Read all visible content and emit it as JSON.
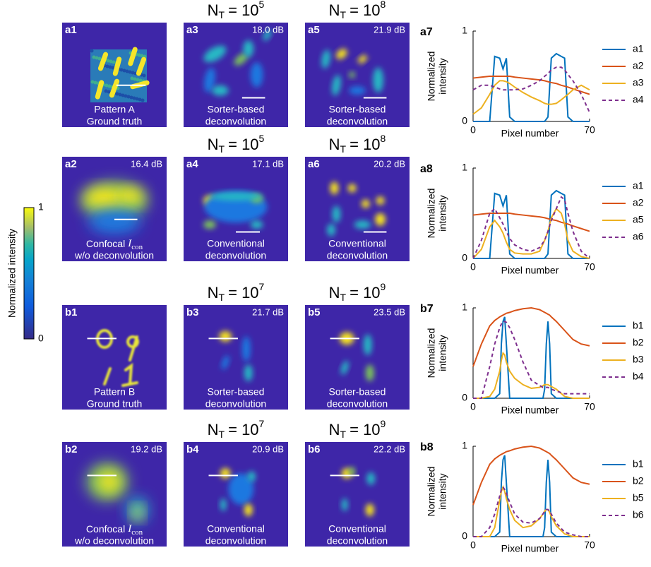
{
  "panels": [
    {
      "label": "a1",
      "caption": [
        "Pattern A",
        "Ground truth"
      ]
    },
    {
      "label": "a3",
      "snr": "18.0 dB",
      "caption": [
        "Sorter-based",
        "deconvolution"
      ]
    },
    {
      "label": "a5",
      "snr": "21.9 dB",
      "caption": [
        "Sorter-based",
        "deconvolution"
      ]
    },
    {
      "label": "a2",
      "snr": "16.4 dB",
      "caption_rich": {
        "text": "Confocal",
        "symbol": "I",
        "subscript": "con"
      },
      "caption": [
        "w/o deconvolution"
      ]
    },
    {
      "label": "a4",
      "snr": "17.1 dB",
      "caption": [
        "Conventional",
        "deconvolution"
      ]
    },
    {
      "label": "a6",
      "snr": "20.2 dB",
      "caption": [
        "Conventional",
        "deconvolution"
      ]
    },
    {
      "label": "b1",
      "caption": [
        "Pattern B",
        "Ground truth"
      ]
    },
    {
      "label": "b3",
      "snr": "21.7 dB",
      "caption": [
        "Sorter-based",
        "deconvolution"
      ]
    },
    {
      "label": "b5",
      "snr": "23.5 dB",
      "caption": [
        "Sorter-based",
        "deconvolution"
      ]
    },
    {
      "label": "b2",
      "snr": "19.2 dB",
      "caption_rich": {
        "text": "Confocal",
        "symbol": "I",
        "subscript": "con"
      },
      "caption": [
        "w/o deconvolution"
      ]
    },
    {
      "label": "b4",
      "snr": "20.9 dB",
      "caption": [
        "Conventional",
        "deconvolution"
      ]
    },
    {
      "label": "b6",
      "snr": "22.2 dB",
      "caption": [
        "Conventional",
        "deconvolution"
      ]
    }
  ],
  "headers": [
    {
      "symbol": "N",
      "subscript": "T",
      "equals": "= 10",
      "exponent": "5"
    },
    {
      "symbol": "N",
      "subscript": "T",
      "equals": "= 10",
      "exponent": "8"
    },
    {
      "symbol": "N",
      "subscript": "T",
      "equals": "= 10",
      "exponent": "5"
    },
    {
      "symbol": "N",
      "subscript": "T",
      "equals": "= 10",
      "exponent": "8"
    },
    {
      "symbol": "N",
      "subscript": "T",
      "equals": "= 10",
      "exponent": "7"
    },
    {
      "symbol": "N",
      "subscript": "T",
      "equals": "= 10",
      "exponent": "9"
    },
    {
      "symbol": "N",
      "subscript": "T",
      "equals": "= 10",
      "exponent": "7"
    },
    {
      "symbol": "N",
      "subscript": "T",
      "equals": "= 10",
      "exponent": "9"
    }
  ],
  "colorbar": {
    "label": "Normalized intensity",
    "lim": [
      0,
      1
    ],
    "ticks": [
      0,
      1
    ]
  },
  "chart_data": [
    {
      "type": "line",
      "label": "a7",
      "ylabel": [
        "Normalized",
        "intensity"
      ],
      "xlabel": "Pixel number",
      "xlim": [
        0,
        70
      ],
      "ylim": [
        0,
        1
      ],
      "xticks": [
        0,
        70
      ],
      "yticks": [
        0,
        1
      ],
      "x": [
        0,
        5,
        10,
        13,
        16,
        18,
        20,
        22,
        25,
        30,
        35,
        40,
        43,
        45,
        47,
        50,
        53,
        55,
        57,
        60,
        65,
        70
      ],
      "series": [
        {
          "name": "a1",
          "color": "#0072bd",
          "style": "solid",
          "values": [
            0,
            0,
            0,
            0.72,
            0.7,
            0.58,
            0.7,
            0.05,
            0,
            0,
            0,
            0,
            0,
            0.05,
            0.7,
            0.75,
            0.72,
            0.7,
            0.05,
            0,
            0,
            0
          ]
        },
        {
          "name": "a2",
          "color": "#d95319",
          "style": "solid",
          "values": [
            0.48,
            0.49,
            0.5,
            0.5,
            0.5,
            0.5,
            0.5,
            0.5,
            0.49,
            0.48,
            0.47,
            0.46,
            0.45,
            0.44,
            0.43,
            0.42,
            0.4,
            0.39,
            0.38,
            0.36,
            0.33,
            0.3
          ]
        },
        {
          "name": "a3",
          "color": "#edb120",
          "style": "solid",
          "values": [
            0.08,
            0.15,
            0.3,
            0.4,
            0.45,
            0.45,
            0.44,
            0.42,
            0.38,
            0.32,
            0.27,
            0.23,
            0.2,
            0.19,
            0.19,
            0.2,
            0.24,
            0.27,
            0.3,
            0.35,
            0.4,
            0.35
          ]
        },
        {
          "name": "a4",
          "color": "#7e2f8e",
          "style": "dashed",
          "values": [
            0.35,
            0.4,
            0.4,
            0.38,
            0.36,
            0.35,
            0.35,
            0.35,
            0.35,
            0.36,
            0.4,
            0.45,
            0.5,
            0.53,
            0.57,
            0.6,
            0.6,
            0.57,
            0.52,
            0.45,
            0.3,
            0.1
          ]
        }
      ]
    },
    {
      "type": "line",
      "label": "a8",
      "ylabel": [
        "Normalized",
        "intensity"
      ],
      "xlabel": "Pixel number",
      "xlim": [
        0,
        70
      ],
      "ylim": [
        0,
        1
      ],
      "xticks": [
        0,
        70
      ],
      "yticks": [
        0,
        1
      ],
      "x": [
        0,
        5,
        10,
        13,
        16,
        18,
        20,
        22,
        25,
        30,
        35,
        40,
        43,
        45,
        47,
        50,
        53,
        55,
        57,
        60,
        65,
        70
      ],
      "series": [
        {
          "name": "a1",
          "color": "#0072bd",
          "style": "solid",
          "values": [
            0,
            0,
            0,
            0.72,
            0.7,
            0.58,
            0.7,
            0.05,
            0,
            0,
            0,
            0,
            0,
            0.05,
            0.7,
            0.75,
            0.72,
            0.7,
            0.05,
            0,
            0,
            0
          ]
        },
        {
          "name": "a2",
          "color": "#d95319",
          "style": "solid",
          "values": [
            0.48,
            0.49,
            0.5,
            0.5,
            0.5,
            0.5,
            0.5,
            0.5,
            0.49,
            0.48,
            0.47,
            0.46,
            0.45,
            0.44,
            0.43,
            0.42,
            0.4,
            0.39,
            0.38,
            0.36,
            0.33,
            0.3
          ]
        },
        {
          "name": "a5",
          "color": "#edb120",
          "style": "solid",
          "values": [
            0,
            0.1,
            0.35,
            0.42,
            0.35,
            0.28,
            0.18,
            0.1,
            0.06,
            0.05,
            0.05,
            0.08,
            0.2,
            0.3,
            0.45,
            0.55,
            0.5,
            0.38,
            0.2,
            0.08,
            0.02,
            0
          ]
        },
        {
          "name": "a6",
          "color": "#7e2f8e",
          "style": "dashed",
          "values": [
            0,
            0.2,
            0.5,
            0.55,
            0.45,
            0.38,
            0.3,
            0.22,
            0.15,
            0.1,
            0.08,
            0.12,
            0.2,
            0.3,
            0.42,
            0.55,
            0.68,
            0.65,
            0.5,
            0.3,
            0.08,
            0
          ]
        }
      ]
    },
    {
      "type": "line",
      "label": "b7",
      "ylabel": [
        "Normalized",
        "intensity"
      ],
      "xlabel": "Pixel number",
      "xlim": [
        0,
        70
      ],
      "ylim": [
        0,
        1
      ],
      "xticks": [
        0,
        70
      ],
      "yticks": [
        0,
        1
      ],
      "x": [
        0,
        5,
        10,
        13,
        16,
        17,
        18,
        19,
        20,
        22,
        25,
        30,
        35,
        40,
        42,
        43,
        44,
        45,
        46,
        47,
        50,
        55,
        60,
        65,
        70
      ],
      "series": [
        {
          "name": "b1",
          "color": "#0072bd",
          "style": "solid",
          "values": [
            0,
            0,
            0,
            0,
            0.05,
            0.6,
            0.85,
            0.9,
            0.6,
            0,
            0,
            0,
            0,
            0,
            0,
            0.1,
            0.6,
            0.85,
            0.6,
            0.05,
            0,
            0,
            0,
            0,
            0
          ]
        },
        {
          "name": "b2",
          "color": "#d95319",
          "style": "solid",
          "values": [
            0.35,
            0.6,
            0.8,
            0.86,
            0.9,
            0.91,
            0.92,
            0.93,
            0.94,
            0.95,
            0.97,
            0.99,
            1.0,
            0.98,
            0.96,
            0.95,
            0.94,
            0.93,
            0.92,
            0.9,
            0.85,
            0.75,
            0.65,
            0.6,
            0.58
          ]
        },
        {
          "name": "b3",
          "color": "#edb120",
          "style": "solid",
          "values": [
            0,
            0,
            0.02,
            0.1,
            0.3,
            0.42,
            0.5,
            0.48,
            0.4,
            0.3,
            0.22,
            0.15,
            0.11,
            0.12,
            0.14,
            0.15,
            0.15,
            0.15,
            0.14,
            0.13,
            0.1,
            0.02,
            0,
            0,
            0
          ]
        },
        {
          "name": "b4",
          "color": "#7e2f8e",
          "style": "dashed",
          "values": [
            0,
            0,
            0.35,
            0.6,
            0.78,
            0.82,
            0.85,
            0.85,
            0.84,
            0.78,
            0.65,
            0.4,
            0.2,
            0.14,
            0.12,
            0.12,
            0.12,
            0.12,
            0.11,
            0.1,
            0.08,
            0.05,
            0.05,
            0.05,
            0.05
          ]
        }
      ]
    },
    {
      "type": "line",
      "label": "b8",
      "ylabel": [
        "Normalized",
        "intensity"
      ],
      "xlabel": "Pixel number",
      "xlim": [
        0,
        70
      ],
      "ylim": [
        0,
        1
      ],
      "xticks": [
        0,
        70
      ],
      "yticks": [
        0,
        1
      ],
      "x": [
        0,
        5,
        10,
        13,
        16,
        17,
        18,
        19,
        20,
        22,
        25,
        30,
        35,
        40,
        42,
        43,
        44,
        45,
        46,
        47,
        50,
        55,
        60,
        65,
        70
      ],
      "series": [
        {
          "name": "b1",
          "color": "#0072bd",
          "style": "solid",
          "values": [
            0,
            0,
            0,
            0,
            0.05,
            0.6,
            0.85,
            0.9,
            0.6,
            0,
            0,
            0,
            0,
            0,
            0,
            0.1,
            0.6,
            0.85,
            0.6,
            0.05,
            0,
            0,
            0,
            0,
            0
          ]
        },
        {
          "name": "b2",
          "color": "#d95319",
          "style": "solid",
          "values": [
            0.35,
            0.6,
            0.8,
            0.86,
            0.9,
            0.91,
            0.92,
            0.93,
            0.94,
            0.95,
            0.97,
            0.99,
            1.0,
            0.98,
            0.96,
            0.95,
            0.94,
            0.93,
            0.92,
            0.9,
            0.85,
            0.75,
            0.65,
            0.6,
            0.58
          ]
        },
        {
          "name": "b5",
          "color": "#edb120",
          "style": "solid",
          "values": [
            0,
            0,
            0,
            0.1,
            0.4,
            0.5,
            0.55,
            0.5,
            0.42,
            0.3,
            0.18,
            0.1,
            0.12,
            0.2,
            0.25,
            0.28,
            0.3,
            0.3,
            0.27,
            0.22,
            0.12,
            0.03,
            0,
            0,
            0
          ]
        },
        {
          "name": "b6",
          "color": "#7e2f8e",
          "style": "dashed",
          "values": [
            0,
            0,
            0.1,
            0.25,
            0.45,
            0.52,
            0.55,
            0.52,
            0.48,
            0.38,
            0.25,
            0.16,
            0.15,
            0.2,
            0.25,
            0.28,
            0.3,
            0.3,
            0.28,
            0.25,
            0.15,
            0.05,
            0.02,
            0,
            0
          ]
        }
      ]
    }
  ]
}
